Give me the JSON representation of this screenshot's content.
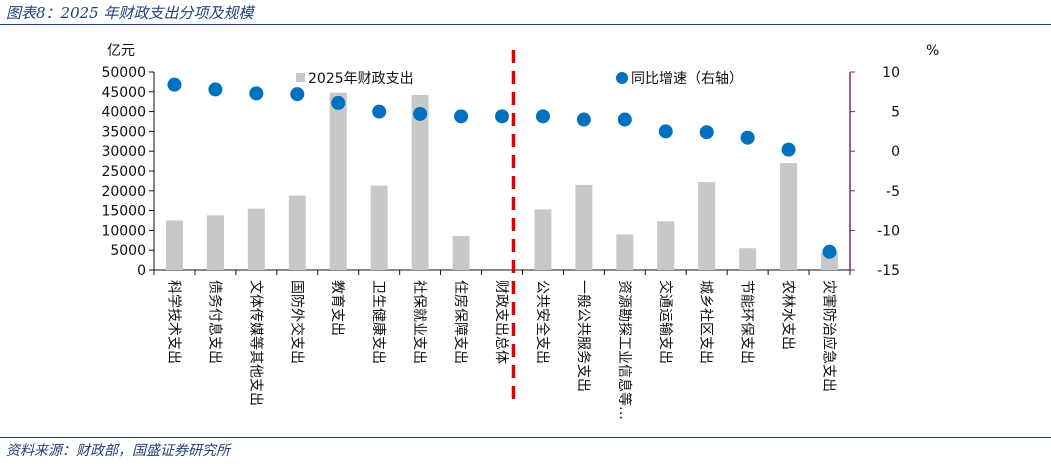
{
  "header": {
    "title": "图表8：2025 年财政支出分项及规模"
  },
  "footer": {
    "source": "资料来源：财政部，国盛证券研究所"
  },
  "colors": {
    "bar": "#c8c8c8",
    "dot": "#0070c0",
    "divider": "#e00000",
    "right_axis": "#7b2d6b",
    "rule": "#1f3f7a"
  },
  "chart_data": {
    "type": "bar",
    "title": "",
    "xlabel": "",
    "ylabel": "亿元",
    "y2label": "%",
    "ylim": [
      0,
      50000
    ],
    "y2lim": [
      -15,
      10
    ],
    "yticks": [
      0,
      5000,
      10000,
      15000,
      20000,
      25000,
      30000,
      35000,
      40000,
      45000,
      50000
    ],
    "y2ticks": [
      -15,
      -10,
      -5,
      0,
      5,
      10
    ],
    "legend_position": "top",
    "divider_after_category": "财政支出总体",
    "categories": [
      "科学技术支出",
      "债务付息支出",
      "文体传媒等其他支出",
      "国防外交支出",
      "教育支出",
      "卫生健康支出",
      "社保就业支出",
      "住房保障支出",
      "财政支出总体",
      "公共安全支出",
      "一般公共服务支出",
      "资源勘探工业信息等…",
      "交通运输支出",
      "城乡社区支出",
      "节能环保支出",
      "农林水支出",
      "灾害防治应急支出"
    ],
    "series": [
      {
        "name": "2025年财政支出",
        "type": "bar",
        "axis": "left",
        "values": [
          12500,
          13800,
          15500,
          18800,
          44800,
          21300,
          44200,
          8600,
          null,
          15300,
          21500,
          9000,
          12300,
          22200,
          5500,
          27000,
          4500
        ]
      },
      {
        "name": "同比增速（右轴）",
        "type": "scatter",
        "axis": "right",
        "values": [
          8.4,
          7.8,
          7.3,
          7.2,
          6.1,
          5.0,
          4.7,
          4.4,
          4.4,
          4.4,
          4.0,
          4.0,
          2.5,
          2.4,
          1.7,
          0.2,
          -12.7
        ]
      }
    ]
  }
}
